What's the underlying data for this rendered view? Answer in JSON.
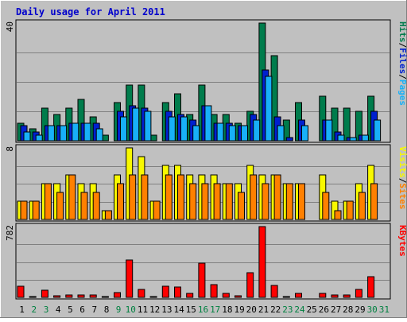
{
  "chart_data": {
    "type": "bar",
    "title": "Daily usage for April 2011",
    "colors": {
      "frame": "#c0c0c0",
      "plot_bg": "#c0c0c0",
      "title": "#0000cc",
      "hits": "#007c4c",
      "files": "#0020d0",
      "pages": "#18b0f8",
      "visits": "#f8f800",
      "sites": "#ff8000",
      "kbytes": "#ff0000",
      "weekend_label": "#008040",
      "weekday_label": "#000000"
    },
    "categories": [
      "1",
      "2",
      "3",
      "4",
      "5",
      "6",
      "7",
      "8",
      "9",
      "10",
      "11",
      "12",
      "13",
      "14",
      "15",
      "16",
      "17",
      "18",
      "19",
      "20",
      "21",
      "22",
      "23",
      "24",
      "25",
      "26",
      "27",
      "28",
      "29",
      "30",
      "31"
    ],
    "weekend_days": [
      "2",
      "3",
      "9",
      "10",
      "16",
      "17",
      "23",
      "24",
      "30",
      "31"
    ],
    "panels": [
      {
        "id": "hits",
        "ymax_label": "40",
        "ymax": 40,
        "legend": [
          {
            "label": "Hits",
            "color": "#007c4c"
          },
          {
            "label": "/",
            "color": "#000000"
          },
          {
            "label": "Files",
            "color": "#0020d0"
          },
          {
            "label": "/",
            "color": "#000000"
          },
          {
            "label": "Pages",
            "color": "#18b0f8"
          }
        ],
        "series": [
          {
            "name": "Hits",
            "values": [
              6,
              4,
              11,
              9,
              11,
              14,
              8,
              2,
              13,
              19,
              19,
              2,
              13,
              16,
              9,
              19,
              9,
              9,
              6,
              10,
              40,
              29,
              7,
              13,
              0,
              15,
              11,
              11,
              10,
              15,
              0
            ]
          },
          {
            "name": "Files",
            "values": [
              5,
              3,
              5,
              5,
              6,
              6,
              6,
              0,
              10,
              12,
              11,
              0,
              10,
              9,
              7,
              12,
              6,
              6,
              5,
              9,
              24,
              8,
              1,
              7,
              0,
              7,
              3,
              1,
              2,
              10,
              0
            ]
          },
          {
            "name": "Pages",
            "values": [
              3,
              2,
              5,
              5,
              6,
              6,
              4,
              0,
              8,
              11,
              10,
              0,
              8,
              8,
              5,
              12,
              6,
              5,
              5,
              7,
              22,
              5,
              0,
              5,
              0,
              7,
              2,
              1,
              2,
              7,
              0
            ]
          }
        ]
      },
      {
        "id": "visits",
        "ymax_label": "8",
        "ymax": 8,
        "legend": [
          {
            "label": "Visits",
            "color": "#f8f800"
          },
          {
            "label": "/",
            "color": "#000000"
          },
          {
            "label": "Sites",
            "color": "#ff8000"
          }
        ],
        "series": [
          {
            "name": "Visits",
            "values": [
              2,
              2,
              4,
              4,
              5,
              4,
              4,
              1,
              5,
              8,
              7,
              2,
              6,
              6,
              5,
              5,
              5,
              4,
              4,
              6,
              5,
              5,
              4,
              4,
              0,
              5,
              2,
              2,
              4,
              6,
              0
            ]
          },
          {
            "name": "Sites",
            "values": [
              2,
              2,
              4,
              3,
              5,
              3,
              3,
              1,
              4,
              5,
              5,
              2,
              5,
              5,
              4,
              4,
              4,
              4,
              3,
              5,
              4,
              5,
              4,
              4,
              0,
              3,
              1,
              2,
              3,
              4,
              0
            ]
          }
        ]
      },
      {
        "id": "kbytes",
        "ymax_label": "782",
        "ymax": 782,
        "legend": [
          {
            "label": "KBytes",
            "color": "#ff0000"
          }
        ],
        "series": [
          {
            "name": "KBytes",
            "values": [
              120,
              5,
              80,
              20,
              30,
              30,
              25,
              10,
              50,
              410,
              90,
              10,
              120,
              110,
              40,
              380,
              140,
              40,
              15,
              270,
              782,
              130,
              10,
              40,
              0,
              40,
              25,
              30,
              90,
              230,
              0
            ]
          }
        ]
      }
    ]
  }
}
